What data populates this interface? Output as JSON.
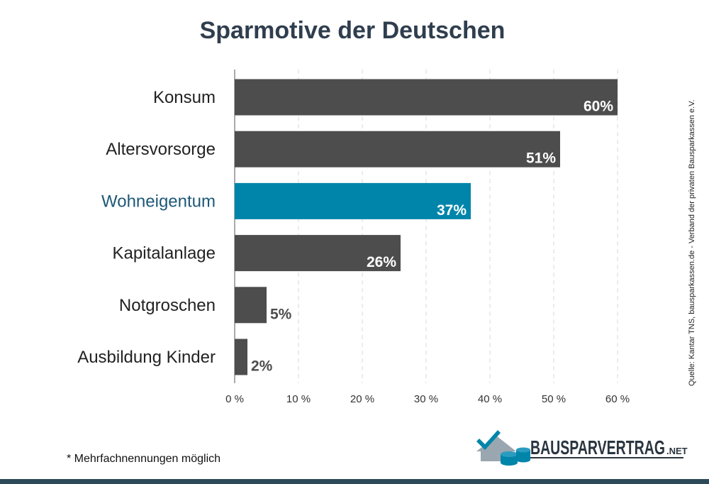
{
  "colors": {
    "bar_default": "#4d4d4d",
    "bar_highlight": "#0085aa",
    "label_highlight": "#1d5878",
    "title": "#2f3e4e",
    "grid": "#d9d9d9",
    "bottom_bar": "#2c4a5a"
  },
  "chart_data": {
    "type": "bar",
    "orientation": "horizontal",
    "title": "Sparmotive der Deutschen",
    "categories": [
      "Konsum",
      "Altersvorsorge",
      "Wohneigentum",
      "Kapitalanlage",
      "Notgroschen",
      "Ausbildung Kinder"
    ],
    "values": [
      60,
      51,
      37,
      26,
      5,
      2
    ],
    "value_labels": [
      "60%",
      "51%",
      "37%",
      "26%",
      "5%",
      "2%"
    ],
    "highlight_category": "Wohneigentum",
    "xlim": [
      0,
      60
    ],
    "xticks": [
      0,
      10,
      20,
      30,
      40,
      50,
      60
    ],
    "xtick_labels": [
      "0 %",
      "10 %",
      "20 %",
      "30 %",
      "40 %",
      "50 %",
      "60 %"
    ],
    "xlabel": "",
    "ylabel": "",
    "grid": "vertical dashed",
    "legend": "none"
  },
  "source": "Quelle: Kantar TNS, bausparkassen.de - Verband der privaten Bausparkassen e.V.",
  "footnote": "* Mehrfachnennungen möglich",
  "logo": {
    "icon": "house-coins-icon",
    "text": "BAUSPARVERTRAG",
    "suffix": ".NET"
  }
}
